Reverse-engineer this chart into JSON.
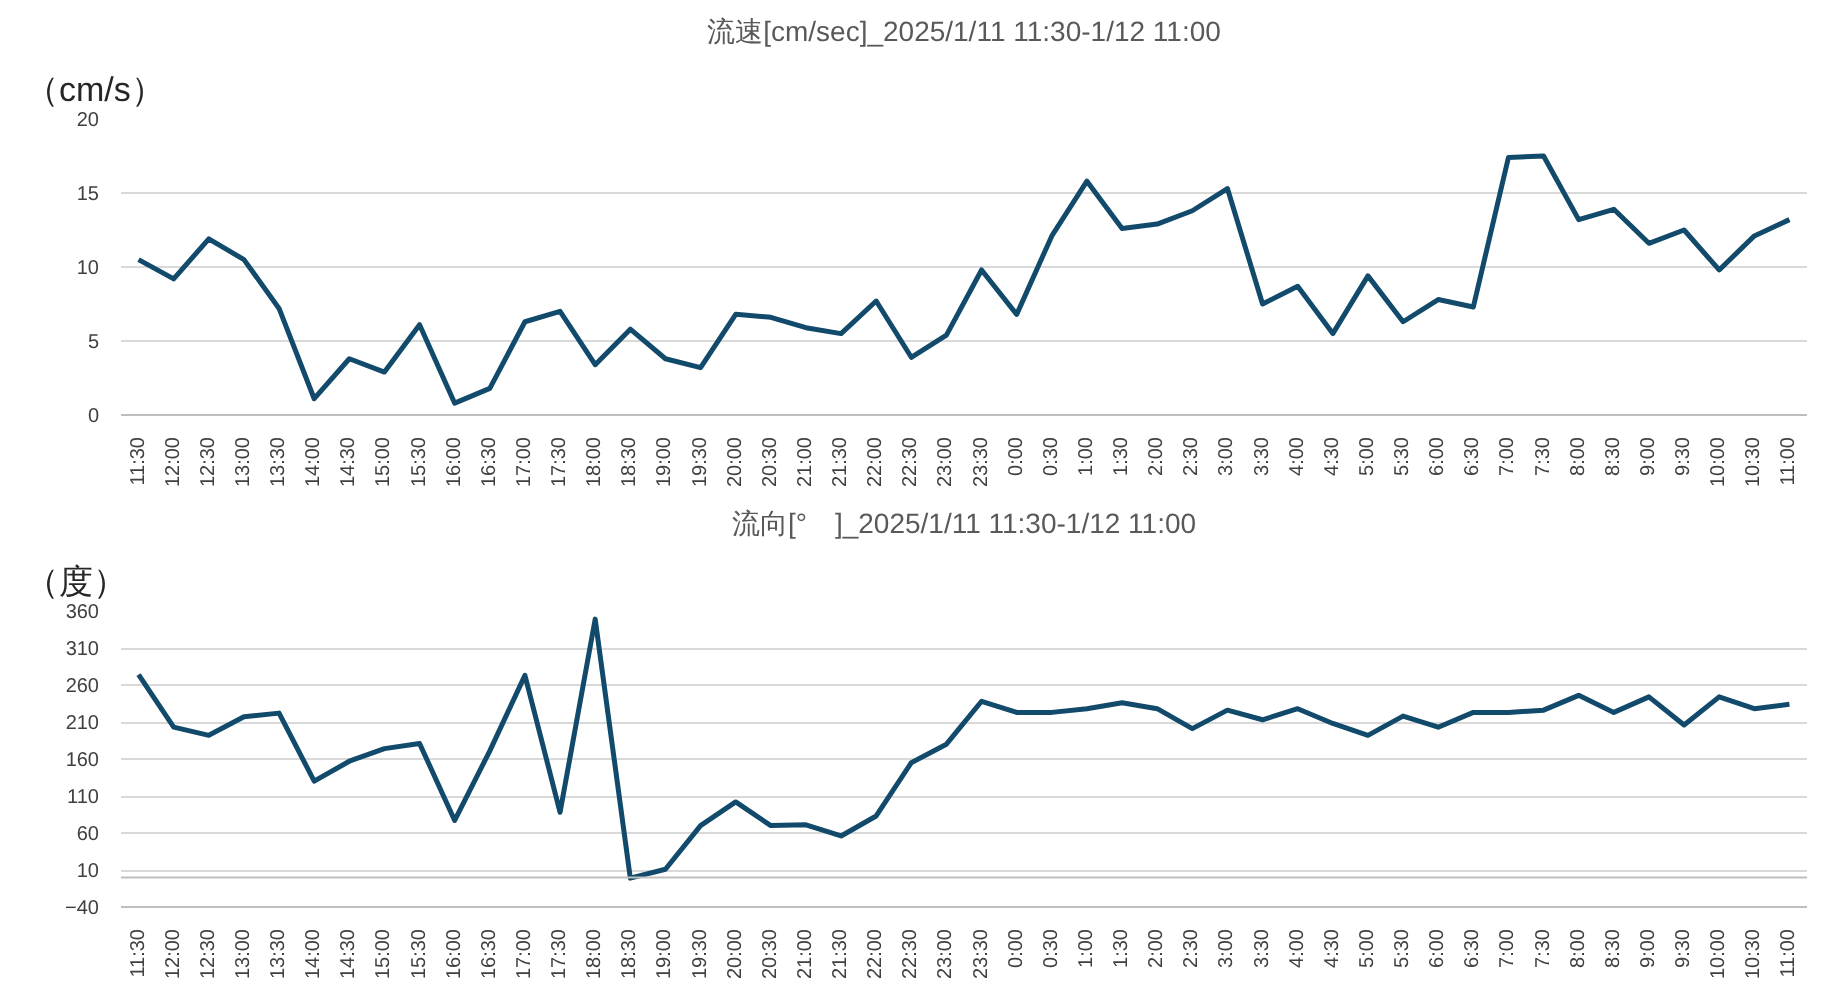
{
  "chart_data": [
    {
      "type": "line",
      "title": "流速[cm/sec]_2025/1/11 11:30-1/12 11:00",
      "ylabel": "（cm/s）",
      "categories": [
        "11:30",
        "12:00",
        "12:30",
        "13:00",
        "13:30",
        "14:00",
        "14:30",
        "15:00",
        "15:30",
        "16:00",
        "16:30",
        "17:00",
        "17:30",
        "18:00",
        "18:30",
        "19:00",
        "19:30",
        "20:00",
        "20:30",
        "21:00",
        "21:30",
        "22:00",
        "22:30",
        "23:00",
        "23:30",
        "0:00",
        "0:30",
        "1:00",
        "1:30",
        "2:00",
        "2:30",
        "3:00",
        "3:30",
        "4:00",
        "4:30",
        "5:00",
        "5:30",
        "6:00",
        "6:30",
        "7:00",
        "7:30",
        "8:00",
        "8:30",
        "9:00",
        "9:30",
        "10:00",
        "10:30",
        "11:00"
      ],
      "series": [
        {
          "color": "#124a6b",
          "values": [
            10.5,
            9.2,
            11.9,
            10.5,
            7.2,
            1.1,
            3.8,
            2.9,
            6.1,
            0.8,
            1.8,
            6.3,
            7.0,
            3.4,
            5.8,
            3.8,
            3.2,
            6.8,
            6.6,
            5.9,
            5.5,
            7.7,
            3.9,
            5.4,
            9.8,
            6.8,
            12.1,
            15.8,
            12.6,
            12.9,
            13.8,
            15.3,
            7.5,
            8.7,
            5.5,
            9.4,
            6.3,
            7.8,
            7.3,
            17.4,
            17.5,
            13.2,
            13.9,
            11.6,
            12.5,
            9.8,
            12.1,
            13.2
          ]
        }
      ],
      "ylim": [
        0,
        20
      ],
      "yticks": [
        0,
        5,
        10,
        15,
        20
      ],
      "grid": "y",
      "marker": "none",
      "line_style": "solid"
    },
    {
      "type": "line",
      "title": "流向[°　]_2025/1/11 11:30-1/12 11:00",
      "ylabel": "（度）",
      "categories": [
        "11:30",
        "12:00",
        "12:30",
        "13:00",
        "13:30",
        "14:00",
        "14:30",
        "15:00",
        "15:30",
        "16:00",
        "16:30",
        "17:00",
        "17:30",
        "18:00",
        "18:30",
        "19:00",
        "19:30",
        "20:00",
        "20:30",
        "21:00",
        "21:30",
        "22:00",
        "22:30",
        "23:00",
        "23:30",
        "0:00",
        "0:30",
        "1:00",
        "1:30",
        "2:00",
        "2:30",
        "3:00",
        "3:30",
        "4:00",
        "4:30",
        "5:00",
        "5:30",
        "6:00",
        "6:30",
        "7:00",
        "7:30",
        "8:00",
        "8:30",
        "9:00",
        "9:30",
        "10:00",
        "10:30",
        "11:00"
      ],
      "series": [
        {
          "color": "#124a6b",
          "values": [
            274,
            203,
            192,
            217,
            222,
            130,
            157,
            174,
            181,
            77,
            171,
            273,
            88,
            349,
            -1,
            11,
            70,
            102,
            70,
            71,
            56,
            83,
            155,
            180,
            238,
            223,
            223,
            228,
            236,
            228,
            201,
            226,
            213,
            228,
            208,
            192,
            218,
            203,
            223,
            223,
            226,
            246,
            223,
            244,
            206,
            244,
            228,
            234
          ]
        }
      ],
      "ylim": [
        -40,
        360
      ],
      "yticks": [
        -40,
        10,
        60,
        110,
        160,
        210,
        260,
        310,
        360
      ],
      "grid": "y",
      "marker": "none",
      "line_style": "solid",
      "ref_lines": [
        {
          "axis": "y",
          "value": 0,
          "color": "#bfbfbf"
        }
      ]
    }
  ]
}
